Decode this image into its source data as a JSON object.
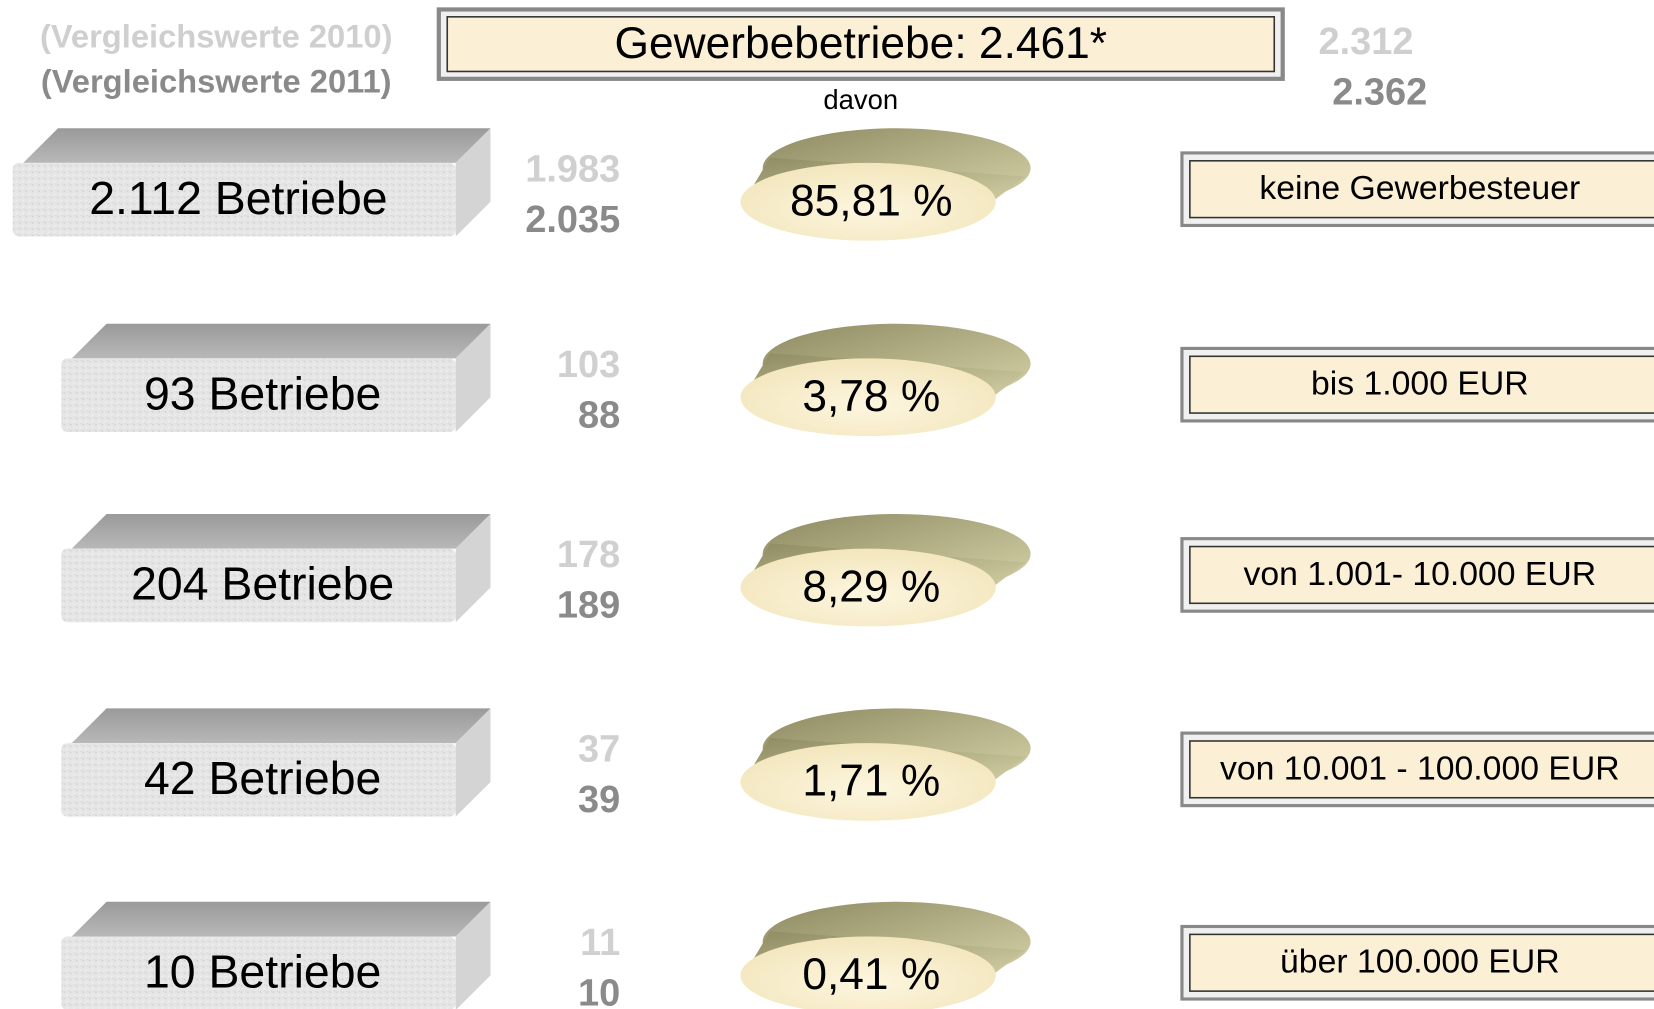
{
  "legend": [
    "(Vergleichswerte 2010)",
    "(Vergleichswerte 2011)"
  ],
  "header": {
    "title": "Gewerbebetriebe: 2.461*",
    "compare_2010": "2.312",
    "compare_2011": "2.362",
    "subtitle": "davon"
  },
  "rows": [
    {
      "count": "2.112 Betriebe",
      "compare_2010": "1.983",
      "compare_2011": "2.035",
      "share": "85,81 %",
      "category": "keine Gewerbesteuer"
    },
    {
      "count": "93 Betriebe",
      "compare_2010": "103",
      "compare_2011": "88",
      "share": "3,78 %",
      "category": "bis 1.000 EUR"
    },
    {
      "count": "204 Betriebe",
      "compare_2010": "178",
      "compare_2011": "189",
      "share": "8,29 %",
      "category": "von 1.001- 10.000 EUR"
    },
    {
      "count": "42 Betriebe",
      "compare_2010": "37",
      "compare_2011": "39",
      "share": "1,71 %",
      "category": "von 10.001 - 100.000 EUR"
    },
    {
      "count": "10 Betriebe",
      "compare_2010": "11",
      "compare_2011": "10",
      "share": "0,41 %",
      "category": "über 100.000 EUR"
    }
  ]
}
